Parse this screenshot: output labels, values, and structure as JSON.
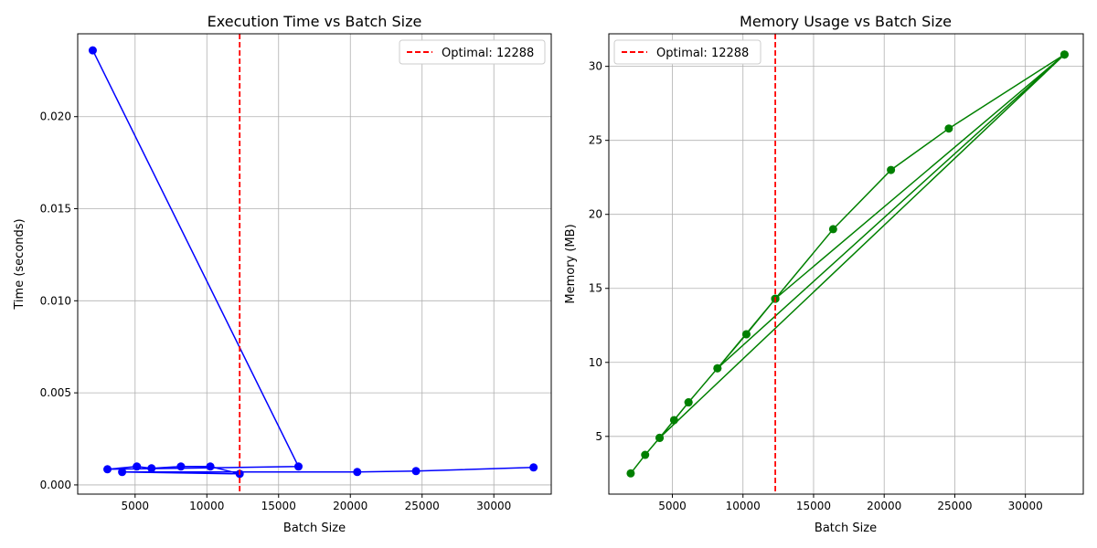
{
  "chart_data": [
    {
      "type": "line",
      "title": "Execution Time vs Batch Size",
      "xlabel": "Batch Size",
      "ylabel": "Time (seconds)",
      "xlim": [
        1000,
        34000
      ],
      "ylim": [
        -0.0005,
        0.0245
      ],
      "xticks": [
        5000,
        10000,
        15000,
        20000,
        25000,
        30000
      ],
      "xtick_labels": [
        "5000",
        "10000",
        "15000",
        "20000",
        "25000",
        "30000"
      ],
      "yticks": [
        0.0,
        0.005,
        0.01,
        0.015,
        0.02
      ],
      "ytick_labels": [
        "0.000",
        "0.005",
        "0.010",
        "0.015",
        "0.020"
      ],
      "grid": true,
      "legend_position": "top-right",
      "series": [
        {
          "color": "#0000ff",
          "marker": "circle",
          "x": [
            2048,
            16384,
            3072,
            5120,
            6144,
            8192,
            10240,
            12288,
            4096,
            20480,
            24576,
            32768
          ],
          "y": [
            0.0236,
            0.001,
            0.00085,
            0.001,
            0.0009,
            0.001,
            0.001,
            0.0006,
            0.0007,
            0.0007,
            0.00075,
            0.00095
          ]
        }
      ],
      "vline": {
        "x": 12288,
        "color": "#ff0000",
        "style": "dashed",
        "label": "Optimal: 12288"
      }
    },
    {
      "type": "line",
      "title": "Memory Usage vs Batch Size",
      "xlabel": "Batch Size",
      "ylabel": "Memory (MB)",
      "xlim": [
        500,
        34100
      ],
      "ylim": [
        1.1,
        32.2
      ],
      "xticks": [
        5000,
        10000,
        15000,
        20000,
        25000,
        30000
      ],
      "xtick_labels": [
        "5000",
        "10000",
        "15000",
        "20000",
        "25000",
        "30000"
      ],
      "yticks": [
        5,
        10,
        15,
        20,
        25,
        30
      ],
      "ytick_labels": [
        "5",
        "10",
        "15",
        "20",
        "25",
        "30"
      ],
      "grid": true,
      "legend_position": "top-left",
      "series": [
        {
          "color": "#008000",
          "marker": "circle",
          "x": [
            2048,
            3072,
            4096,
            5120,
            6144,
            8192,
            10240,
            12288,
            16384,
            20480,
            24576,
            32768,
            8192,
            12288,
            32768,
            4096,
            6144,
            10240,
            12288
          ],
          "y": [
            2.5,
            3.75,
            4.9,
            6.1,
            7.3,
            9.6,
            11.9,
            14.3,
            19.0,
            23.0,
            25.8,
            30.8,
            9.6,
            14.3,
            30.8,
            4.9,
            7.3,
            11.9,
            14.3
          ]
        }
      ],
      "vline": {
        "x": 12288,
        "color": "#ff0000",
        "style": "dashed",
        "label": "Optimal: 12288"
      }
    }
  ]
}
